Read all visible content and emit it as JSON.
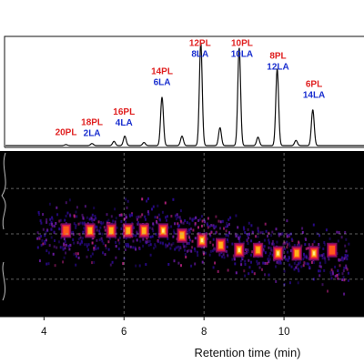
{
  "chart_data": [
    {
      "type": "line",
      "description_panel": "chromatogram",
      "xlim": [
        2.9,
        12
      ],
      "ylim": [
        0,
        1
      ],
      "grid": false,
      "colors": {
        "line": "#111111",
        "pl_label": "#e02020",
        "la_label": "#1a2fcf"
      },
      "peaks": [
        {
          "x": 4.55,
          "y": 0.01
        },
        {
          "x": 5.2,
          "y": 0.02
        },
        {
          "x": 5.75,
          "y": 0.04
        },
        {
          "x": 6.02,
          "y": 0.09
        },
        {
          "x": 6.5,
          "y": 0.03
        },
        {
          "x": 6.95,
          "y": 0.46
        },
        {
          "x": 7.45,
          "y": 0.09
        },
        {
          "x": 7.92,
          "y": 0.98
        },
        {
          "x": 8.4,
          "y": 0.17
        },
        {
          "x": 8.88,
          "y": 0.93
        },
        {
          "x": 9.35,
          "y": 0.08
        },
        {
          "x": 9.83,
          "y": 0.73
        },
        {
          "x": 10.3,
          "y": 0.05
        },
        {
          "x": 10.72,
          "y": 0.34
        }
      ],
      "annotations": [
        {
          "x": 4.55,
          "y": 0.1,
          "pl": "20PL",
          "la": ""
        },
        {
          "x": 5.2,
          "y": 0.1,
          "pl": "18PL",
          "la": "2LA"
        },
        {
          "x": 6.0,
          "y": 0.2,
          "pl": "16PL",
          "la": "4LA"
        },
        {
          "x": 6.95,
          "y": 0.58,
          "pl": "14PL",
          "la": "6LA"
        },
        {
          "x": 7.9,
          "y": 0.85,
          "pl": "12PL",
          "la": "8LA"
        },
        {
          "x": 8.95,
          "y": 0.85,
          "pl": "10PL",
          "la": "10LA"
        },
        {
          "x": 9.85,
          "y": 0.73,
          "pl": "8PL",
          "la": "12LA"
        },
        {
          "x": 10.75,
          "y": 0.46,
          "pl": "6PL",
          "la": "14LA"
        }
      ]
    },
    {
      "type": "heatmap",
      "description_panel": "mobility map",
      "xlim": [
        2.9,
        12
      ],
      "ylim": [
        0,
        1
      ],
      "colormap": "hot",
      "background": "#000000",
      "grid": true,
      "gridlines_y": [
        0.22,
        0.5,
        0.78
      ],
      "gridlines_x": [
        6,
        8,
        10
      ],
      "spots": [
        {
          "x": 4.55,
          "y": 0.52,
          "intensity": 0.6
        },
        {
          "x": 5.15,
          "y": 0.52,
          "intensity": 0.8
        },
        {
          "x": 5.68,
          "y": 0.52,
          "intensity": 0.75
        },
        {
          "x": 6.1,
          "y": 0.52,
          "intensity": 0.85
        },
        {
          "x": 6.5,
          "y": 0.52,
          "intensity": 0.75
        },
        {
          "x": 6.98,
          "y": 0.52,
          "intensity": 0.95
        },
        {
          "x": 7.45,
          "y": 0.49,
          "intensity": 0.75
        },
        {
          "x": 7.95,
          "y": 0.46,
          "intensity": 1.0
        },
        {
          "x": 8.42,
          "y": 0.43,
          "intensity": 0.8
        },
        {
          "x": 8.88,
          "y": 0.4,
          "intensity": 1.0
        },
        {
          "x": 9.35,
          "y": 0.4,
          "intensity": 0.8
        },
        {
          "x": 9.85,
          "y": 0.38,
          "intensity": 1.0
        },
        {
          "x": 10.32,
          "y": 0.38,
          "intensity": 0.75
        },
        {
          "x": 10.75,
          "y": 0.38,
          "intensity": 0.9
        },
        {
          "x": 11.2,
          "y": 0.4,
          "intensity": 0.5
        }
      ],
      "xticks": [
        4,
        6,
        8,
        10
      ],
      "xlabel": "Retention time (min)"
    }
  ]
}
